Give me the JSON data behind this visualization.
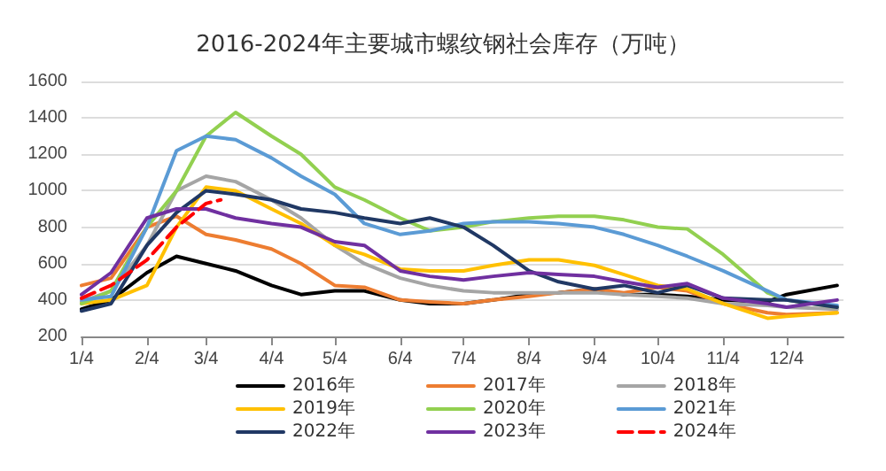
{
  "chart_data": {
    "type": "line",
    "title": "2016-2024年主要城市螺纹钢社会库存（万吨）",
    "ylim": [
      200,
      1600
    ],
    "yticks": [
      200,
      400,
      600,
      800,
      1000,
      1200,
      1400,
      1600
    ],
    "xlim": [
      "--01-04",
      "--12-31"
    ],
    "xticks": [
      {
        "value": "--01-04",
        "label": "1/4"
      },
      {
        "value": "--02-04",
        "label": "2/4"
      },
      {
        "value": "--03-04",
        "label": "3/4"
      },
      {
        "value": "--04-04",
        "label": "4/4"
      },
      {
        "value": "--05-04",
        "label": "5/4"
      },
      {
        "value": "--06-04",
        "label": "6/4"
      },
      {
        "value": "--07-04",
        "label": "7/4"
      },
      {
        "value": "--08-04",
        "label": "8/4"
      },
      {
        "value": "--09-04",
        "label": "9/4"
      },
      {
        "value": "--10-04",
        "label": "10/4"
      },
      {
        "value": "--11-04",
        "label": "11/4"
      },
      {
        "value": "--12-04",
        "label": "12/4"
      }
    ],
    "grid": "y",
    "legend": "bottom",
    "marker": "none",
    "line_style": "solid",
    "x": [
      "--01-04",
      "--01-18",
      "--02-04",
      "--02-18",
      "--03-04",
      "--03-18",
      "--04-04",
      "--04-18",
      "--05-04",
      "--05-18",
      "--06-04",
      "--06-18",
      "--07-04",
      "--07-18",
      "--08-04",
      "--08-18",
      "--09-04",
      "--09-18",
      "--10-04",
      "--10-18",
      "--11-04",
      "--11-25",
      "--12-04",
      "--12-28"
    ],
    "series": [
      {
        "name": "2016年",
        "color": "#000000",
        "values": [
          350,
          400,
          550,
          640,
          600,
          560,
          480,
          430,
          450,
          450,
          400,
          380,
          380,
          400,
          430,
          440,
          460,
          430,
          430,
          420,
          400,
          390,
          430,
          480
        ]
      },
      {
        "name": "2017年",
        "color": "#ed7d31",
        "values": [
          480,
          520,
          800,
          860,
          760,
          730,
          680,
          600,
          480,
          470,
          400,
          390,
          380,
          400,
          420,
          440,
          460,
          440,
          470,
          450,
          380,
          330,
          320,
          330
        ]
      },
      {
        "name": "2018年",
        "color": "#a5a5a5",
        "values": [
          390,
          450,
          700,
          1000,
          1080,
          1050,
          950,
          850,
          700,
          600,
          520,
          480,
          450,
          440,
          440,
          440,
          440,
          430,
          420,
          410,
          380,
          370,
          360,
          350
        ]
      },
      {
        "name": "2019年",
        "color": "#ffc000",
        "values": [
          380,
          400,
          480,
          800,
          1020,
          1000,
          900,
          820,
          700,
          650,
          570,
          560,
          560,
          590,
          620,
          620,
          590,
          540,
          480,
          460,
          380,
          300,
          310,
          330
        ]
      },
      {
        "name": "2020年",
        "color": "#92d050",
        "values": [
          380,
          450,
          800,
          1000,
          1300,
          1430,
          1300,
          1200,
          1020,
          950,
          850,
          780,
          800,
          830,
          850,
          860,
          860,
          840,
          800,
          790,
          650,
          440,
          400,
          360
        ]
      },
      {
        "name": "2021年",
        "color": "#5b9bd5",
        "values": [
          400,
          420,
          800,
          1220,
          1300,
          1280,
          1180,
          1080,
          980,
          820,
          760,
          780,
          820,
          830,
          830,
          820,
          800,
          760,
          700,
          640,
          560,
          450,
          400,
          370
        ]
      },
      {
        "name": "2022年",
        "color": "#203864",
        "values": [
          340,
          380,
          700,
          880,
          1000,
          980,
          950,
          900,
          880,
          850,
          820,
          850,
          800,
          700,
          560,
          500,
          460,
          480,
          440,
          480,
          410,
          400,
          400,
          360
        ]
      },
      {
        "name": "2023年",
        "color": "#7030a0",
        "values": [
          430,
          550,
          850,
          900,
          900,
          850,
          820,
          800,
          720,
          700,
          560,
          530,
          510,
          530,
          550,
          540,
          530,
          500,
          470,
          490,
          410,
          380,
          360,
          400
        ]
      },
      {
        "name": "2024年",
        "color": "#ff0000",
        "line_style": "dashed",
        "x": [
          "--01-04",
          "--01-18",
          "--02-04",
          "--02-18",
          "--03-04",
          "--03-11"
        ],
        "values": [
          410,
          480,
          620,
          800,
          930,
          950
        ]
      }
    ]
  }
}
